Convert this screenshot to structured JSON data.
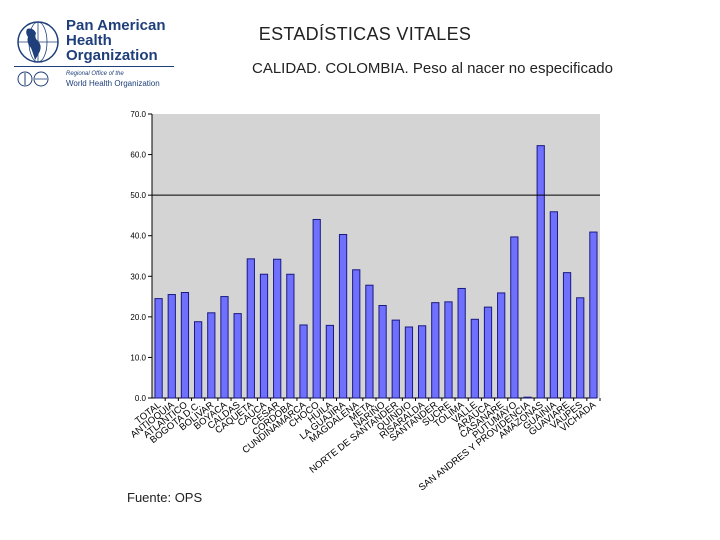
{
  "header": {
    "title": "ESTADÍSTICAS VITALES",
    "subtitle": "CALIDAD. COLOMBIA. Peso al nacer no especificado"
  },
  "logo": {
    "name_lines": [
      "Pan American",
      "Health",
      "Organization"
    ],
    "sub1": "Regional Office of the",
    "sub2": "World Health Organization"
  },
  "footer": {
    "source": "Fuente: OPS"
  },
  "colors": {
    "plot_bg": "#d4d4d4",
    "bar_fill": "#7070ff",
    "bar_edge": "#1a1a80",
    "reference_line": "#000000"
  },
  "chart_data": {
    "type": "bar",
    "title": "",
    "xlabel": "",
    "ylabel": "",
    "ylim": [
      0,
      70
    ],
    "yticks": [
      "0.0",
      "10.0",
      "20.0",
      "30.0",
      "40.0",
      "50.0",
      "60.0",
      "70.0"
    ],
    "grid": false,
    "reference_line": 50,
    "categories": [
      "TOTAL",
      "ANTIOQUIA",
      "ATLANTICO",
      "BOGOTA D.C.",
      "BOLIVAR",
      "BOYACA",
      "CALDAS",
      "CAQUETA",
      "CAUCA",
      "CESAR",
      "CORDOBA",
      "CUNDINAMARCA",
      "CHOCO",
      "HUILA",
      "LA GUAJIRA",
      "MAGDALENA",
      "META",
      "NARIÑO",
      "NORTE DE SANTANDER",
      "QUINDIO",
      "RISARALDA",
      "SANTANDER",
      "SUCRE",
      "TOLIMA",
      "VALLE",
      "ARAUCA",
      "CASANARE",
      "PUTUMAYO",
      "SAN ANDRES Y PROVIDENCIA",
      "AMAZONAS",
      "GUAINIA",
      "GUAVIARE",
      "VAUPES",
      "VICHADA"
    ],
    "values": [
      24.5,
      25.5,
      26.0,
      18.8,
      21.0,
      25.0,
      20.8,
      34.3,
      30.5,
      34.2,
      30.5,
      18.0,
      44.0,
      17.9,
      40.3,
      31.6,
      27.8,
      22.8,
      19.2,
      17.5,
      17.8,
      23.5,
      23.7,
      27.0,
      19.4,
      22.4,
      25.9,
      39.7,
      0.2,
      62.2,
      45.9,
      30.9,
      24.7,
      40.9
    ]
  }
}
